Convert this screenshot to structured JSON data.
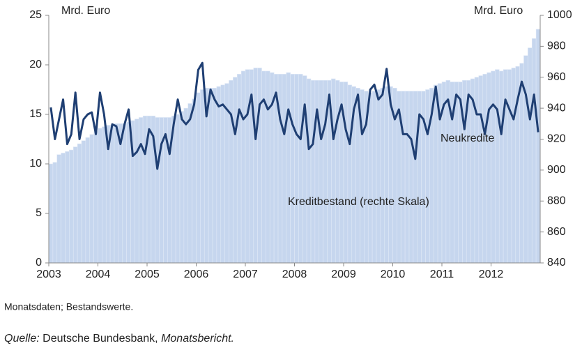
{
  "chart_data": {
    "type": "bar_line",
    "left_unit": "Mrd. Euro",
    "right_unit": "Mrd. Euro",
    "annotations": [
      "Neukredite",
      "Kreditbestand (rechte Skala)"
    ],
    "categories": [
      "2003",
      null,
      null,
      null,
      null,
      null,
      null,
      null,
      null,
      null,
      null,
      null,
      "2004",
      null,
      null,
      null,
      null,
      null,
      null,
      null,
      null,
      null,
      null,
      null,
      "2005",
      null,
      null,
      null,
      null,
      null,
      null,
      null,
      null,
      null,
      null,
      null,
      "2006",
      null,
      null,
      null,
      null,
      null,
      null,
      null,
      null,
      null,
      null,
      null,
      "2007",
      null,
      null,
      null,
      null,
      null,
      null,
      null,
      null,
      null,
      null,
      null,
      "2008",
      null,
      null,
      null,
      null,
      null,
      null,
      null,
      null,
      null,
      null,
      null,
      "2009",
      null,
      null,
      null,
      null,
      null,
      null,
      null,
      null,
      null,
      null,
      null,
      "2010",
      null,
      null,
      null,
      null,
      null,
      null,
      null,
      null,
      null,
      null,
      null,
      "2011",
      null,
      null,
      null,
      null,
      null,
      null,
      null,
      null,
      null,
      null,
      null,
      "2012",
      null,
      null,
      null,
      null,
      null,
      null,
      null,
      null,
      null,
      null,
      null
    ],
    "series": [
      {
        "name": "Kreditbestand (rechte Skala)",
        "kind": "bar",
        "axis": "y2",
        "color": "#c6d6ee",
        "values": [
          904,
          905,
          910,
          911,
          912,
          913,
          915,
          917,
          919,
          921,
          923,
          925,
          927,
          928,
          929,
          929,
          930,
          930,
          930,
          931,
          932,
          933,
          934,
          935,
          935,
          935,
          934,
          934,
          934,
          934,
          935,
          936,
          938,
          940,
          943,
          946,
          950,
          952,
          953,
          953,
          953,
          954,
          955,
          956,
          958,
          960,
          962,
          964,
          965,
          965,
          966,
          966,
          964,
          964,
          963,
          962,
          962,
          962,
          963,
          962,
          962,
          962,
          961,
          959,
          958,
          958,
          958,
          958,
          958,
          959,
          958,
          957,
          957,
          955,
          954,
          953,
          952,
          951,
          950,
          951,
          952,
          953,
          954,
          954,
          953,
          951,
          951,
          951,
          951,
          951,
          951,
          951,
          952,
          953,
          955,
          956,
          957,
          958,
          957,
          957,
          957,
          958,
          958,
          959,
          960,
          961,
          962,
          963,
          964,
          965,
          964,
          965,
          965,
          966,
          967,
          969,
          974,
          979,
          985,
          991
        ]
      },
      {
        "name": "Neukredite",
        "kind": "line",
        "axis": "y",
        "color": "#1f3f73",
        "values": [
          15.7,
          12.5,
          14.5,
          16.5,
          12.0,
          13.0,
          17.2,
          12.5,
          14.5,
          15.0,
          15.2,
          13.0,
          17.2,
          15.0,
          11.5,
          14.0,
          13.8,
          12.0,
          14.0,
          15.5,
          10.8,
          11.2,
          12.0,
          11.0,
          13.5,
          12.8,
          9.5,
          12.0,
          13.0,
          11.0,
          14.0,
          16.5,
          14.5,
          14.0,
          14.5,
          16.0,
          19.5,
          20.2,
          14.8,
          17.5,
          16.5,
          15.8,
          16.0,
          15.5,
          15.0,
          13.0,
          15.5,
          14.5,
          15.0,
          17.0,
          12.5,
          16.0,
          16.5,
          15.5,
          16.0,
          17.2,
          14.5,
          13.0,
          15.5,
          14.0,
          13.0,
          12.5,
          16.0,
          11.5,
          12.0,
          15.5,
          12.5,
          14.0,
          17.0,
          12.5,
          14.5,
          16.0,
          13.5,
          12.0,
          15.5,
          17.0,
          13.0,
          14.0,
          17.5,
          18.0,
          16.5,
          17.0,
          19.6,
          16.0,
          14.5,
          15.5,
          13.0,
          13.0,
          12.5,
          10.5,
          15.0,
          14.5,
          13.0,
          15.0,
          17.8,
          14.5,
          16.0,
          16.5,
          14.5,
          17.0,
          16.5,
          13.5,
          17.0,
          16.5,
          15.0,
          15.0,
          13.0,
          15.5,
          16.0,
          15.5,
          13.0,
          16.5,
          15.5,
          14.5,
          16.5,
          18.3,
          17.0,
          14.5,
          17.0,
          13.2
        ]
      }
    ],
    "ylim": [
      0,
      25
    ],
    "yticks": [
      0,
      5,
      10,
      15,
      20,
      25
    ],
    "y2lim": [
      840,
      1000
    ],
    "y2ticks": [
      840,
      860,
      880,
      900,
      920,
      940,
      960,
      980,
      1000
    ],
    "grid": false,
    "note": "Monatsdaten; Bestandswerte.",
    "source_label": "Quelle:",
    "source": "Deutsche Bundesbank,",
    "source_publication": "Monatsbericht."
  }
}
